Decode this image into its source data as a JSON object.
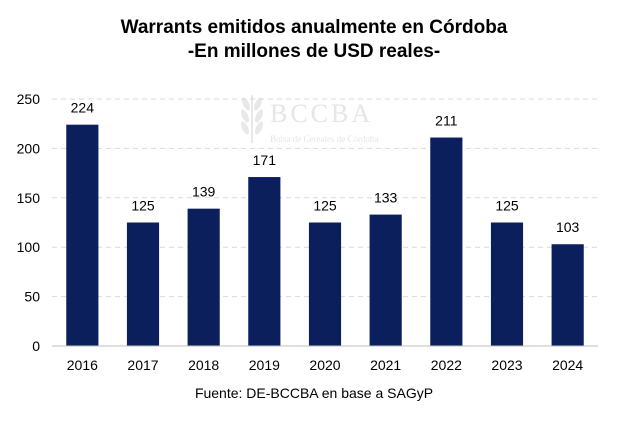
{
  "chart_data": {
    "type": "bar",
    "title": "Warrants emitidos anualmente en Córdoba",
    "subtitle": "-En millones de USD reales-",
    "categories": [
      "2016",
      "2017",
      "2018",
      "2019",
      "2020",
      "2021",
      "2022",
      "2023",
      "2024"
    ],
    "values": [
      224,
      125,
      139,
      171,
      125,
      133,
      211,
      125,
      103
    ],
    "ylim": [
      0,
      250
    ],
    "yticks": [
      0,
      50,
      100,
      150,
      200,
      250
    ],
    "xlabel": "",
    "ylabel": "",
    "grid": true,
    "bar_color": "#0a1f5c",
    "grid_color": "#d9d9d9",
    "source": "Fuente: DE-BCCBA en base a SAGyP"
  },
  "watermark": {
    "name": "BCCBA",
    "subtitle": "Bolsa de Cereales de Córdoba"
  }
}
